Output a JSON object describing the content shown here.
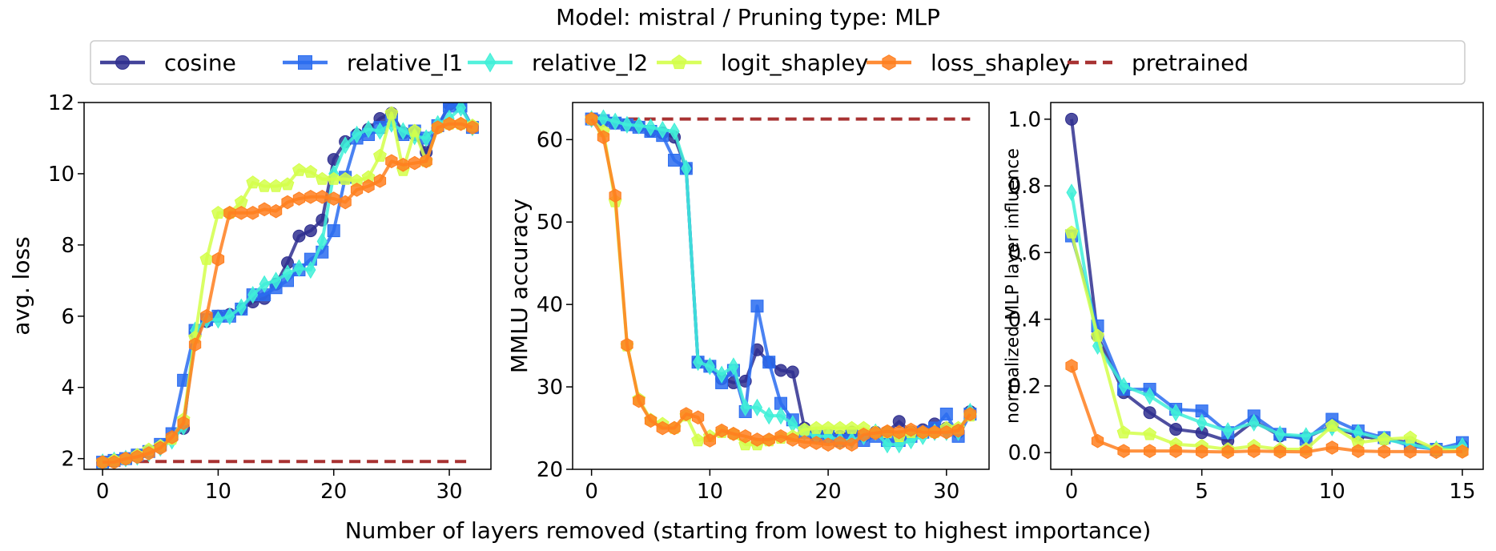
{
  "figure": {
    "title": "Model: mistral / Pruning type: MLP",
    "xlabel": "Number of layers removed (starting from lowest to highest importance)"
  },
  "legend": [
    {
      "name": "cosine",
      "color": "#2f2f8f",
      "marker": "circle",
      "dash": false
    },
    {
      "name": "relative_l1",
      "color": "#2a6cf0",
      "marker": "square",
      "dash": false
    },
    {
      "name": "relative_l2",
      "color": "#40f0d8",
      "marker": "diamond",
      "dash": false
    },
    {
      "name": "logit_shapley",
      "color": "#d4ff4a",
      "marker": "pentagon",
      "dash": false
    },
    {
      "name": "loss_shapley",
      "color": "#ff7f1f",
      "marker": "hexagon",
      "dash": false
    },
    {
      "name": "pretrained",
      "color": "#a83232",
      "marker": "none",
      "dash": true
    }
  ],
  "chart_data": [
    {
      "type": "line",
      "ylabel": "avg. loss",
      "xlim": [
        -1.6,
        33.6
      ],
      "ylim": [
        1.7,
        12
      ],
      "xticks": [
        0,
        10,
        20,
        30
      ],
      "yticks": [
        2,
        4,
        6,
        8,
        10,
        12
      ],
      "pretrained": 1.92,
      "series": [
        {
          "name": "cosine",
          "x": [
            0,
            1,
            2,
            3,
            4,
            5,
            6,
            7,
            8,
            9,
            10,
            11,
            12,
            13,
            14,
            15,
            16,
            17,
            18,
            19,
            20,
            21,
            22,
            23,
            24,
            25,
            26,
            27,
            28,
            29,
            30,
            31,
            32
          ],
          "y": [
            1.9,
            1.95,
            2.0,
            2.1,
            2.2,
            2.35,
            2.6,
            2.85,
            5.55,
            5.85,
            6.0,
            6.05,
            6.2,
            6.4,
            6.5,
            6.9,
            7.5,
            8.25,
            8.4,
            8.7,
            10.4,
            10.9,
            11.1,
            11.25,
            11.55,
            11.7,
            11.15,
            11.1,
            10.6,
            11.3,
            11.95,
            11.9,
            11.3
          ]
        },
        {
          "name": "relative_l1",
          "x": [
            0,
            1,
            2,
            3,
            4,
            5,
            6,
            7,
            8,
            9,
            10,
            11,
            12,
            13,
            14,
            15,
            16,
            17,
            18,
            19,
            20,
            21,
            22,
            23,
            24,
            25,
            26,
            27,
            28,
            29,
            30,
            31,
            32
          ],
          "y": [
            1.9,
            1.95,
            2.0,
            2.1,
            2.2,
            2.4,
            2.7,
            4.2,
            5.6,
            5.9,
            6.0,
            6.0,
            6.2,
            6.6,
            6.6,
            6.8,
            7.0,
            7.3,
            7.6,
            7.8,
            8.4,
            9.9,
            11.0,
            11.1,
            11.3,
            11.5,
            11.1,
            11.2,
            11.0,
            11.35,
            11.9,
            11.9,
            11.3
          ]
        },
        {
          "name": "relative_l2",
          "x": [
            0,
            1,
            2,
            3,
            4,
            5,
            6,
            7,
            8,
            9,
            10,
            11,
            12,
            13,
            14,
            15,
            16,
            17,
            18,
            19,
            20,
            21,
            22,
            23,
            24,
            25,
            26,
            27,
            28,
            29,
            30,
            31,
            32
          ],
          "y": [
            1.9,
            1.95,
            2.0,
            2.05,
            2.15,
            2.3,
            2.5,
            2.9,
            5.6,
            5.9,
            5.9,
            6.0,
            6.25,
            6.6,
            6.9,
            7.0,
            7.2,
            7.35,
            7.3,
            8.1,
            10.0,
            10.8,
            11.1,
            11.25,
            11.2,
            11.4,
            11.2,
            11.05,
            11.0,
            11.4,
            11.55,
            11.85,
            11.3
          ]
        },
        {
          "name": "logit_shapley",
          "x": [
            0,
            1,
            2,
            3,
            4,
            5,
            6,
            7,
            8,
            9,
            10,
            11,
            12,
            13,
            14,
            15,
            16,
            17,
            18,
            19,
            20,
            21,
            22,
            23,
            24,
            25,
            26,
            27,
            28,
            29,
            30,
            31,
            32
          ],
          "y": [
            1.9,
            1.95,
            2.0,
            2.1,
            2.25,
            2.35,
            2.55,
            3.1,
            5.4,
            7.6,
            8.9,
            8.9,
            9.2,
            9.75,
            9.65,
            9.65,
            9.7,
            10.1,
            10.05,
            9.85,
            9.85,
            9.85,
            9.8,
            9.9,
            10.5,
            11.7,
            10.1,
            11.2,
            10.35,
            11.3,
            11.4,
            11.4,
            11.35
          ]
        },
        {
          "name": "loss_shapley",
          "x": [
            0,
            1,
            2,
            3,
            4,
            5,
            6,
            7,
            8,
            9,
            10,
            11,
            12,
            13,
            14,
            15,
            16,
            17,
            18,
            19,
            20,
            21,
            22,
            23,
            24,
            25,
            26,
            27,
            28,
            29,
            30,
            31,
            32
          ],
          "y": [
            1.9,
            1.9,
            2.0,
            2.05,
            2.15,
            2.3,
            2.6,
            3.0,
            5.2,
            6.0,
            7.6,
            8.9,
            8.9,
            8.9,
            9.0,
            8.95,
            9.2,
            9.3,
            9.35,
            9.35,
            9.3,
            9.2,
            9.55,
            9.65,
            9.8,
            10.35,
            10.25,
            10.3,
            10.35,
            11.3,
            11.4,
            11.4,
            11.3
          ]
        }
      ]
    },
    {
      "type": "line",
      "ylabel": "MMLU accuracy",
      "xlim": [
        -1.6,
        33.6
      ],
      "ylim": [
        20,
        64.5
      ],
      "xticks": [
        0,
        10,
        20,
        30
      ],
      "yticks": [
        20,
        30,
        40,
        50,
        60
      ],
      "pretrained": 62.5,
      "series": [
        {
          "name": "cosine",
          "x": [
            0,
            1,
            2,
            3,
            4,
            5,
            6,
            7,
            8,
            9,
            10,
            11,
            12,
            13,
            14,
            15,
            16,
            17,
            18,
            19,
            20,
            21,
            22,
            23,
            24,
            25,
            26,
            27,
            28,
            29,
            30,
            31,
            32
          ],
          "y": [
            62.5,
            62.3,
            62.0,
            61.8,
            61.6,
            61.0,
            60.8,
            60.3,
            56.5,
            33.0,
            32.5,
            31.0,
            30.5,
            30.7,
            34.5,
            33.0,
            32.0,
            31.8,
            25.0,
            24.0,
            24.2,
            24.0,
            24.5,
            24.0,
            24.5,
            24.5,
            25.8,
            24.5,
            24.8,
            25.5,
            25.0,
            24.5,
            27.0
          ]
        },
        {
          "name": "relative_l1",
          "x": [
            0,
            1,
            2,
            3,
            4,
            5,
            6,
            7,
            8,
            9,
            10,
            11,
            12,
            13,
            14,
            15,
            16,
            17,
            18,
            19,
            20,
            21,
            22,
            23,
            24,
            25,
            26,
            27,
            28,
            29,
            30,
            31,
            32
          ],
          "y": [
            62.5,
            62.3,
            62.0,
            61.8,
            61.5,
            61.0,
            60.5,
            57.5,
            56.5,
            33.0,
            32.5,
            30.5,
            32.0,
            27.0,
            39.8,
            33.0,
            28.0,
            26.0,
            24.5,
            24.0,
            24.0,
            23.5,
            24.0,
            23.5,
            24.0,
            23.5,
            23.5,
            24.0,
            24.5,
            25.0,
            26.7,
            24.0,
            26.7
          ]
        },
        {
          "name": "relative_l2",
          "x": [
            0,
            1,
            2,
            3,
            4,
            5,
            6,
            7,
            8,
            9,
            10,
            11,
            12,
            13,
            14,
            15,
            16,
            17,
            18,
            19,
            20,
            21,
            22,
            23,
            24,
            25,
            26,
            27,
            28,
            29,
            30,
            31,
            32
          ],
          "y": [
            62.5,
            62.6,
            62.2,
            61.8,
            61.7,
            61.5,
            61.2,
            61.0,
            56.5,
            33.0,
            32.5,
            31.5,
            32.5,
            27.5,
            27.5,
            26.5,
            26.5,
            25.5,
            24.5,
            24.0,
            24.0,
            23.5,
            23.5,
            24.0,
            24.5,
            23.0,
            23.0,
            23.5,
            24.0,
            24.5,
            24.5,
            24.5,
            27.0
          ]
        },
        {
          "name": "logit_shapley",
          "x": [
            0,
            1,
            2,
            3,
            4,
            5,
            6,
            7,
            8,
            9,
            10,
            11,
            12,
            13,
            14,
            15,
            16,
            17,
            18,
            19,
            20,
            21,
            22,
            23,
            24,
            25,
            26,
            27,
            28,
            29,
            30,
            31,
            32
          ],
          "y": [
            62.5,
            61.0,
            52.5,
            35.0,
            28.5,
            26.0,
            25.5,
            25.0,
            26.5,
            23.5,
            24.0,
            24.5,
            24.3,
            23.0,
            23.0,
            23.5,
            23.8,
            24.0,
            24.8,
            25.0,
            25.0,
            25.0,
            25.0,
            25.0,
            24.5,
            24.5,
            24.0,
            24.5,
            24.5,
            24.5,
            25.0,
            25.0,
            26.5
          ]
        },
        {
          "name": "loss_shapley",
          "x": [
            0,
            1,
            2,
            3,
            4,
            5,
            6,
            7,
            8,
            9,
            10,
            11,
            12,
            13,
            14,
            15,
            16,
            17,
            18,
            19,
            20,
            21,
            22,
            23,
            24,
            25,
            26,
            27,
            28,
            29,
            30,
            31,
            32
          ],
          "y": [
            62.5,
            60.3,
            53.2,
            35.1,
            28.3,
            25.9,
            25.0,
            25.0,
            26.7,
            26.3,
            23.5,
            24.7,
            24.3,
            24.0,
            23.6,
            23.6,
            24.0,
            23.6,
            23.3,
            23.2,
            23.0,
            23.2,
            23.0,
            24.2,
            24.4,
            24.6,
            24.5,
            24.8,
            24.5,
            24.5,
            24.5,
            24.7,
            26.7
          ]
        }
      ]
    },
    {
      "type": "line",
      "ylabel": "normalized MLP layer influence",
      "xlim": [
        -0.8,
        15.8
      ],
      "ylim": [
        -0.05,
        1.05
      ],
      "xticks": [
        0,
        5,
        10,
        15
      ],
      "yticks": [
        0.0,
        0.2,
        0.4,
        0.6,
        0.8,
        1.0
      ],
      "ytick_labels": [
        "0.0",
        "0.2",
        "0.4",
        "0.6",
        "0.8",
        "1.0"
      ],
      "series": [
        {
          "name": "cosine",
          "x": [
            0,
            1,
            2,
            3,
            4,
            5,
            6,
            7,
            8,
            9,
            10,
            11,
            12,
            13,
            14,
            15
          ],
          "y": [
            1.0,
            0.35,
            0.18,
            0.12,
            0.07,
            0.06,
            0.035,
            0.095,
            0.05,
            0.045,
            0.08,
            0.05,
            0.04,
            0.03,
            0.01,
            0.02
          ]
        },
        {
          "name": "relative_l1",
          "x": [
            0,
            1,
            2,
            3,
            4,
            5,
            6,
            7,
            8,
            9,
            10,
            11,
            12,
            13,
            14,
            15
          ],
          "y": [
            0.65,
            0.38,
            0.19,
            0.19,
            0.13,
            0.125,
            0.06,
            0.11,
            0.055,
            0.04,
            0.1,
            0.065,
            0.045,
            0.02,
            0.01,
            0.03
          ]
        },
        {
          "name": "relative_l2",
          "x": [
            0,
            1,
            2,
            3,
            4,
            5,
            6,
            7,
            8,
            9,
            10,
            11,
            12,
            13,
            14,
            15
          ],
          "y": [
            0.78,
            0.32,
            0.2,
            0.17,
            0.12,
            0.09,
            0.065,
            0.09,
            0.055,
            0.05,
            0.075,
            0.06,
            0.04,
            0.025,
            0.01,
            0.02
          ]
        },
        {
          "name": "logit_shapley",
          "x": [
            0,
            1,
            2,
            3,
            4,
            5,
            6,
            7,
            8,
            9,
            10,
            11,
            12,
            13,
            14,
            15
          ],
          "y": [
            0.66,
            0.35,
            0.06,
            0.055,
            0.025,
            0.02,
            0.01,
            0.02,
            0.01,
            0.01,
            0.08,
            0.03,
            0.04,
            0.045,
            0.01,
            0.005
          ]
        },
        {
          "name": "loss_shapley",
          "x": [
            0,
            1,
            2,
            3,
            4,
            5,
            6,
            7,
            8,
            9,
            10,
            11,
            12,
            13,
            14,
            15
          ],
          "y": [
            0.26,
            0.035,
            0.005,
            0.005,
            0.005,
            0.003,
            0.002,
            0.005,
            0.003,
            0.002,
            0.015,
            0.005,
            0.003,
            0.003,
            0.002,
            0.003
          ]
        }
      ]
    }
  ]
}
